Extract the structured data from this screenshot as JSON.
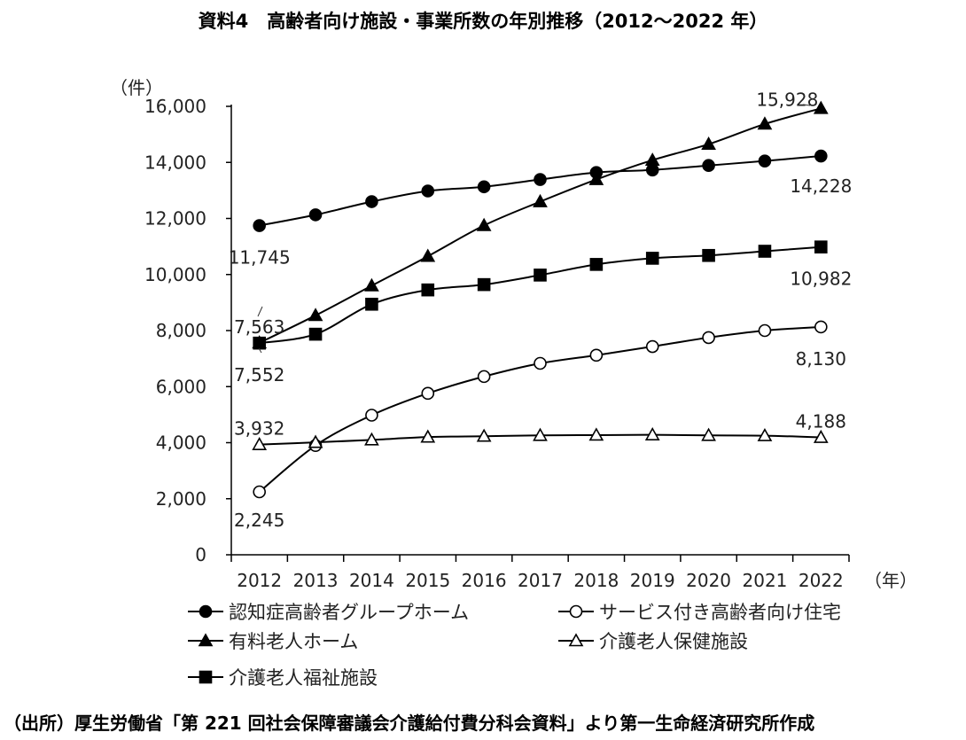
{
  "chart_data": {
    "type": "line",
    "title": "資料4　高齢者向け施設・事業所数の年別推移（2012～2022 年）",
    "ylabel": "（件）",
    "xlabel": "（年）",
    "ylim": [
      0,
      16000
    ],
    "yticks": [
      0,
      2000,
      4000,
      6000,
      8000,
      10000,
      12000,
      14000,
      16000
    ],
    "ytick_labels": [
      "0",
      "2,000",
      "4,000",
      "6,000",
      "8,000",
      "10,000",
      "12,000",
      "14,000",
      "16,000"
    ],
    "categories": [
      "2012",
      "2013",
      "2014",
      "2015",
      "2016",
      "2017",
      "2018",
      "2019",
      "2020",
      "2021",
      "2022"
    ],
    "grid": false,
    "legend_position": "bottom",
    "series": [
      {
        "name": "認知症高齢者グループホーム",
        "marker": "circle-filled",
        "values": [
          11745,
          12130,
          12600,
          12980,
          13130,
          13390,
          13640,
          13730,
          13890,
          14050,
          14228
        ],
        "data_labels": {
          "first": "11,745",
          "last": "14,228"
        }
      },
      {
        "name": "サービス付き高齢者向け住宅",
        "marker": "circle-open",
        "values": [
          2245,
          3900,
          4980,
          5760,
          6360,
          6830,
          7120,
          7430,
          7750,
          8000,
          8130
        ],
        "data_labels": {
          "first": "2,245",
          "last": "8,130"
        }
      },
      {
        "name": "有料老人ホーム",
        "marker": "triangle-filled",
        "values": [
          7563,
          8540,
          9600,
          10650,
          11750,
          12600,
          13390,
          14080,
          14650,
          15370,
          15928
        ],
        "data_labels": {
          "first": "7,563",
          "last": "15,928"
        }
      },
      {
        "name": "介護老人保健施設",
        "marker": "triangle-open",
        "values": [
          3932,
          4010,
          4100,
          4200,
          4230,
          4260,
          4270,
          4280,
          4260,
          4250,
          4188
        ],
        "data_labels": {
          "first": "3,932",
          "last": "4,188"
        }
      },
      {
        "name": "介護老人福祉施設",
        "marker": "square-filled",
        "values": [
          7552,
          7870,
          8940,
          9450,
          9640,
          9980,
          10360,
          10580,
          10680,
          10830,
          10982
        ],
        "data_labels": {
          "first": "7,552",
          "last": "10,982"
        }
      }
    ]
  },
  "source": "（出所）厚生労働省「第 221 回社会保障審議会介護給付費分科会資料」より第一生命経済研究所作成"
}
